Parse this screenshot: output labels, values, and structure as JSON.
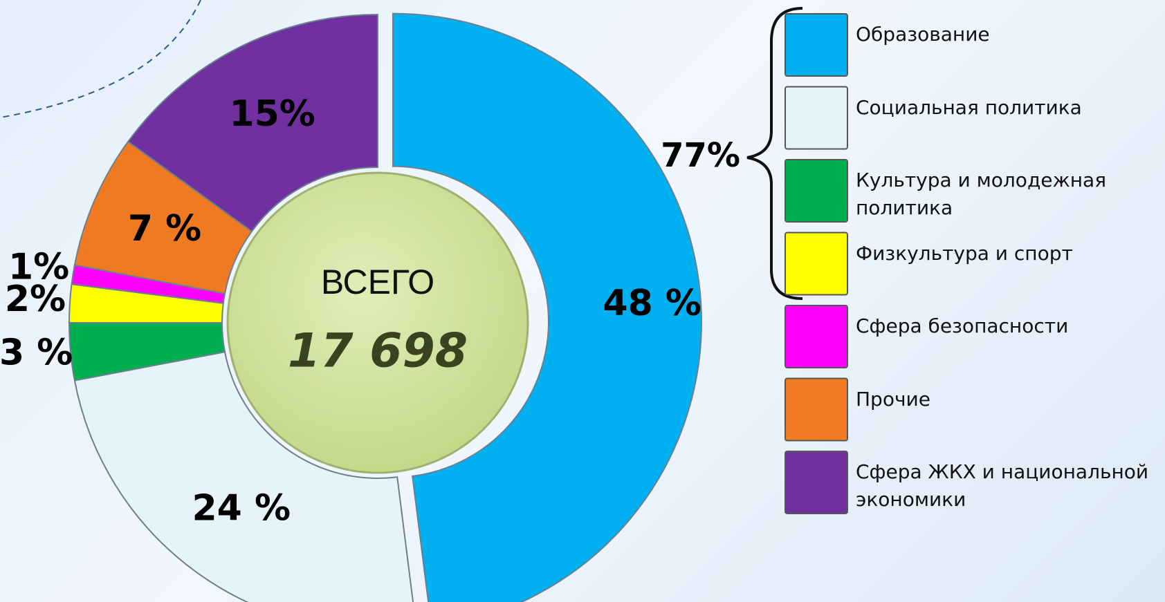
{
  "chart_data": {
    "type": "donut",
    "categories": [
      "Образование",
      "Социальная политика",
      "Культура и молодежная политика",
      "Физкультура и спорт",
      "Сфера безопасности",
      "Прочие",
      "Сфера ЖКХ и национальной экономики"
    ],
    "values": [
      48,
      24,
      3,
      2,
      1,
      7,
      15
    ],
    "value_labels": [
      "48 %",
      "24 %",
      "3 %",
      "2%",
      "1%",
      "7 %",
      "15%"
    ],
    "colors": [
      "#00b0f0",
      "#e6f3f9",
      "#00b050",
      "#ffff00",
      "#ff00ff",
      "#f07a22",
      "#7030a0"
    ],
    "center_label": "ВСЕГО",
    "total_label": "17 698",
    "bracket_label": "77%",
    "legend": "right"
  }
}
